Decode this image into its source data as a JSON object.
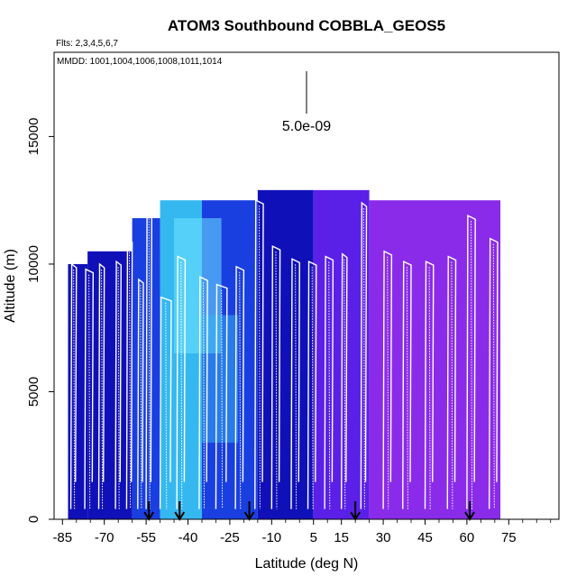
{
  "chart_data": {
    "type": "heatmap",
    "title": "ATOM3 Southbound COBBLA_GEOS5",
    "flights_note": "Flts: 2,3,4,5,6,7",
    "mmdd_note": "MMDD: 1001,1004,1006,1008,1011,1014",
    "xlabel": "Latitude (deg N)",
    "ylabel": "Altitude (m)",
    "xlim": [
      -88,
      93
    ],
    "ylim": [
      0,
      18300
    ],
    "x_ticks": [
      -85,
      -70,
      -55,
      -40,
      -25,
      -10,
      5,
      15,
      30,
      45,
      60,
      75
    ],
    "y_ticks": [
      0,
      5000,
      10000,
      15000
    ],
    "scale_label": "5.0e-09",
    "arrows_lat": [
      -54,
      -43,
      -18,
      20,
      61
    ],
    "colors": {
      "deep_blue": "#1010b8",
      "mid_blue": "#1a3fe0",
      "light_blue": "#35b8f0",
      "cyan": "#6fe3ff",
      "violet": "#5a20e8",
      "purple": "#8a2bea",
      "profile": "#ffffff"
    },
    "regions": [
      {
        "lat": [
          -83,
          -76
        ],
        "alt": [
          0,
          10000
        ],
        "level": "deep"
      },
      {
        "lat": [
          -76,
          -60
        ],
        "alt": [
          0,
          10500
        ],
        "level": "deep"
      },
      {
        "lat": [
          -60,
          -50
        ],
        "alt": [
          0,
          11800
        ],
        "level": "mid"
      },
      {
        "lat": [
          -50,
          -35
        ],
        "alt": [
          0,
          12500
        ],
        "level": "light"
      },
      {
        "lat": [
          -35,
          -15
        ],
        "alt": [
          0,
          12500
        ],
        "level": "mid"
      },
      {
        "lat": [
          -15,
          5
        ],
        "alt": [
          0,
          12900
        ],
        "level": "deep"
      },
      {
        "lat": [
          5,
          25
        ],
        "alt": [
          0,
          12900
        ],
        "level": "violet"
      },
      {
        "lat": [
          25,
          72
        ],
        "alt": [
          0,
          12500
        ],
        "level": "purple"
      }
    ],
    "profiles": [
      {
        "lat": [
          -82,
          -80
        ],
        "top": 10000
      },
      {
        "lat": [
          -77,
          -74
        ],
        "top": 9800
      },
      {
        "lat": [
          -72,
          -70
        ],
        "top": 10000
      },
      {
        "lat": [
          -66,
          -64
        ],
        "top": 10100
      },
      {
        "lat": [
          -62,
          -60
        ],
        "top": 11000
      },
      {
        "lat": [
          -58,
          -56
        ],
        "top": 9400
      },
      {
        "lat": [
          -55,
          -53
        ],
        "top": 12000
      },
      {
        "lat": [
          -50,
          -46
        ],
        "top": 8700
      },
      {
        "lat": [
          -44,
          -41
        ],
        "top": 10300
      },
      {
        "lat": [
          -36,
          -33
        ],
        "top": 9500
      },
      {
        "lat": [
          -30,
          -26
        ],
        "top": 9200
      },
      {
        "lat": [
          -23,
          -20
        ],
        "top": 9900
      },
      {
        "lat": [
          -16,
          -13
        ],
        "top": 12500
      },
      {
        "lat": [
          -10,
          -7
        ],
        "top": 10700
      },
      {
        "lat": [
          -3,
          0
        ],
        "top": 10200
      },
      {
        "lat": [
          3,
          6
        ],
        "top": 10100
      },
      {
        "lat": [
          9,
          12
        ],
        "top": 10300
      },
      {
        "lat": [
          15,
          17
        ],
        "top": 10400
      },
      {
        "lat": [
          22,
          24
        ],
        "top": 12400
      },
      {
        "lat": [
          30,
          33
        ],
        "top": 10500
      },
      {
        "lat": [
          37,
          40
        ],
        "top": 10100
      },
      {
        "lat": [
          45,
          48
        ],
        "top": 10100
      },
      {
        "lat": [
          53,
          56
        ],
        "top": 10300
      },
      {
        "lat": [
          60,
          63
        ],
        "top": 11900
      },
      {
        "lat": [
          68,
          71
        ],
        "top": 11000
      }
    ]
  }
}
